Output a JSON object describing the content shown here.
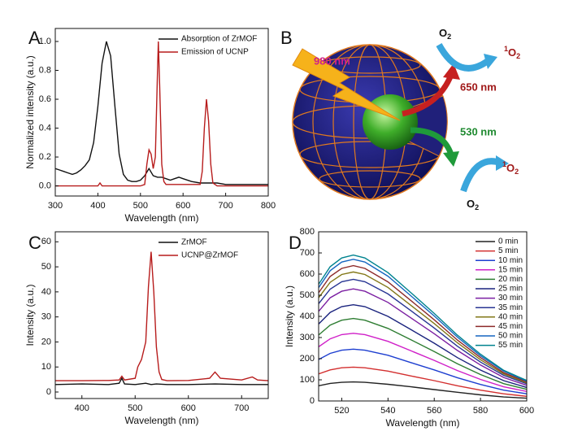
{
  "chart_data": [
    {
      "type": "line",
      "panel_label": "A",
      "xlabel": "Wavelength (nm)",
      "ylabel": "Normalized intensity (a.u.)",
      "xlim": [
        300,
        800
      ],
      "xticks": [
        300,
        400,
        500,
        600,
        700,
        800
      ],
      "ylim": [
        -0.07,
        1.09
      ],
      "yticks": [
        {
          "value": 0,
          "label": "0.0"
        },
        0.2,
        0.4,
        0.6,
        0.8,
        {
          "value": 1,
          "label": "1.0"
        }
      ],
      "legend": "upper right",
      "series": [
        {
          "name": "Absorption of ZrMOF",
          "color": "#111111",
          "x": [
            300,
            310,
            320,
            330,
            340,
            350,
            360,
            370,
            380,
            390,
            400,
            410,
            420,
            430,
            440,
            450,
            460,
            470,
            480,
            490,
            500,
            510,
            520,
            530,
            540,
            550,
            560,
            570,
            580,
            590,
            600,
            620,
            640,
            660,
            680,
            700,
            750,
            800
          ],
          "values": [
            0.12,
            0.11,
            0.1,
            0.09,
            0.08,
            0.09,
            0.11,
            0.14,
            0.18,
            0.3,
            0.55,
            0.85,
            1.0,
            0.9,
            0.55,
            0.22,
            0.08,
            0.04,
            0.03,
            0.03,
            0.04,
            0.07,
            0.12,
            0.07,
            0.06,
            0.06,
            0.05,
            0.04,
            0.05,
            0.06,
            0.05,
            0.03,
            0.02,
            0.02,
            0.02,
            0.01,
            0.01,
            0.01
          ]
        },
        {
          "name": "Emission of UCNP",
          "color": "#b71c1c",
          "x": [
            300,
            400,
            405,
            410,
            500,
            510,
            515,
            520,
            525,
            530,
            535,
            540,
            542,
            545,
            550,
            555,
            560,
            640,
            645,
            650,
            655,
            660,
            665,
            670,
            680,
            800
          ],
          "values": [
            0,
            0,
            0.02,
            0,
            0,
            0.01,
            0.15,
            0.25,
            0.22,
            0.12,
            0.2,
            0.8,
            1.0,
            0.7,
            0.15,
            0.03,
            0.01,
            0.01,
            0.1,
            0.4,
            0.6,
            0.45,
            0.15,
            0.02,
            0,
            0
          ]
        }
      ]
    },
    {
      "type": "line",
      "panel_label": "C",
      "xlabel": "Wavelength (nm)",
      "ylabel": "Intensity (a.u.)",
      "xlim": [
        350,
        750
      ],
      "xticks": [
        400,
        500,
        600,
        700
      ],
      "ylim": [
        -2.6,
        64
      ],
      "yticks": [
        0,
        10,
        20,
        30,
        40,
        50,
        60
      ],
      "legend": "upper right",
      "series": [
        {
          "name": "ZrMOF",
          "color": "#111111",
          "x": [
            350,
            400,
            450,
            470,
            475,
            480,
            500,
            520,
            530,
            540,
            560,
            600,
            650,
            700,
            750
          ],
          "values": [
            3,
            3.2,
            3,
            3.5,
            5.5,
            3.2,
            3,
            3.5,
            3,
            3.2,
            3,
            3,
            3.2,
            3,
            3
          ]
        },
        {
          "name": "UCNP@ZrMOF",
          "color": "#b71c1c",
          "x": [
            350,
            400,
            450,
            470,
            475,
            480,
            500,
            505,
            512,
            520,
            525,
            530,
            535,
            540,
            545,
            550,
            560,
            600,
            640,
            650,
            660,
            700,
            720,
            730,
            750
          ],
          "values": [
            4.5,
            4.5,
            4.6,
            4.8,
            6.3,
            4.8,
            5.5,
            10,
            13,
            20,
            42,
            56,
            40,
            18,
            8,
            5,
            4.5,
            4.6,
            5.5,
            8,
            5.5,
            4.8,
            6,
            4.8,
            4.5
          ]
        }
      ]
    },
    {
      "type": "line",
      "panel_label": "D",
      "xlabel": "Wavelength (nm)",
      "ylabel": "Intensity (a.u.)",
      "xlim": [
        510,
        600
      ],
      "xticks": [
        520,
        540,
        560,
        580,
        600
      ],
      "ylim": [
        0,
        800
      ],
      "yticks": [
        0,
        100,
        200,
        300,
        400,
        500,
        600,
        700,
        800
      ],
      "legend": "upper right",
      "x": [
        510,
        515,
        520,
        525,
        530,
        540,
        550,
        560,
        570,
        580,
        590,
        600
      ],
      "series": [
        {
          "name": "0 min",
          "color": "#222222",
          "values": [
            72,
            83,
            88,
            90,
            88,
            79,
            67,
            54,
            41,
            29,
            19,
            13
          ]
        },
        {
          "name": "5 min",
          "color": "#d32f2f",
          "values": [
            128,
            147,
            157,
            160,
            157,
            141,
            118,
            96,
            72,
            51,
            34,
            22
          ]
        },
        {
          "name": "10 min",
          "color": "#1e3fd0",
          "values": [
            196,
            225,
            240,
            245,
            240,
            216,
            181,
            147,
            110,
            78,
            51,
            34
          ]
        },
        {
          "name": "15 min",
          "color": "#d020c8",
          "values": [
            256,
            294,
            314,
            320,
            314,
            282,
            237,
            192,
            144,
            102,
            67,
            45
          ]
        },
        {
          "name": "20 min",
          "color": "#2e7d32",
          "values": [
            312,
            359,
            382,
            390,
            382,
            343,
            289,
            234,
            176,
            125,
            82,
            55
          ]
        },
        {
          "name": "25 min",
          "color": "#1a237e",
          "values": [
            364,
            419,
            446,
            455,
            446,
            400,
            337,
            273,
            205,
            146,
            96,
            64
          ]
        },
        {
          "name": "30 min",
          "color": "#7b1fa2",
          "values": [
            424,
            488,
            519,
            530,
            519,
            466,
            392,
            318,
            239,
            170,
            111,
            74
          ]
        },
        {
          "name": "35 min",
          "color": "#283593",
          "values": [
            460,
            529,
            564,
            575,
            564,
            506,
            426,
            345,
            259,
            184,
            121,
            81
          ]
        },
        {
          "name": "40 min",
          "color": "#827717",
          "values": [
            488,
            561,
            598,
            610,
            598,
            537,
            451,
            366,
            275,
            195,
            128,
            85
          ]
        },
        {
          "name": "45 min",
          "color": "#8d2a2a",
          "values": [
            512,
            589,
            627,
            640,
            627,
            563,
            474,
            384,
            288,
            205,
            134,
            90
          ]
        },
        {
          "name": "50 min",
          "color": "#1565c0",
          "values": [
            536,
            616,
            657,
            670,
            657,
            590,
            496,
            402,
            302,
            214,
            141,
            94
          ]
        },
        {
          "name": "55 min",
          "color": "#00838f",
          "values": [
            552,
            635,
            676,
            690,
            676,
            607,
            511,
            414,
            311,
            221,
            145,
            97
          ]
        }
      ]
    }
  ],
  "panel_b": {
    "panel_label": "B",
    "excitation": "980 nm",
    "red_emission": "650 nm",
    "green_emission": "530 nm",
    "oxygen_top": [
      "O",
      "2"
    ],
    "singlet_top": [
      "1",
      "O",
      "2"
    ],
    "singlet_bottom": [
      "1",
      "O",
      "2"
    ],
    "oxygen_bottom": [
      "O",
      "2"
    ]
  }
}
